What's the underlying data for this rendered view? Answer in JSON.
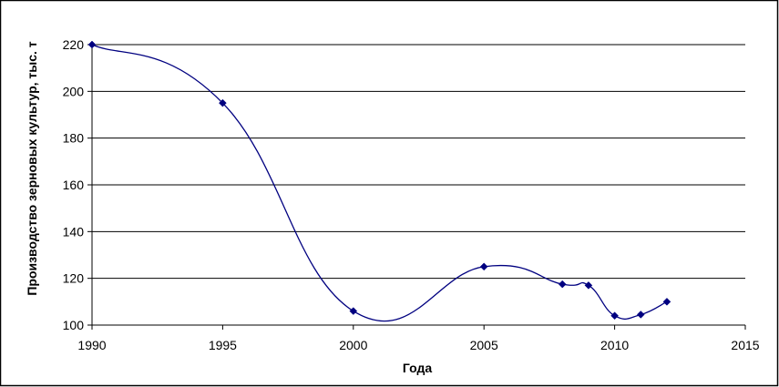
{
  "chart_data": {
    "type": "line",
    "title": "",
    "xlabel": "Года",
    "ylabel": "Производство зерновых культур, тыс. т",
    "xlim": [
      1990,
      2015
    ],
    "ylim": [
      100,
      220
    ],
    "x_ticks": [
      1990,
      1995,
      2000,
      2005,
      2010,
      2015
    ],
    "y_ticks": [
      100,
      120,
      140,
      160,
      180,
      200,
      220
    ],
    "grid": true,
    "legend": "none",
    "smooth": true,
    "series": [
      {
        "color": "#000080",
        "marker": "diamond",
        "points": [
          {
            "x": 1990,
            "y": 220
          },
          {
            "x": 1995,
            "y": 195
          },
          {
            "x": 2000,
            "y": 106
          },
          {
            "x": 2005,
            "y": 125
          },
          {
            "x": 2008,
            "y": 117.5
          },
          {
            "x": 2009,
            "y": 117
          },
          {
            "x": 2010,
            "y": 104
          },
          {
            "x": 2011,
            "y": 104.5
          },
          {
            "x": 2012,
            "y": 110
          }
        ]
      }
    ]
  }
}
